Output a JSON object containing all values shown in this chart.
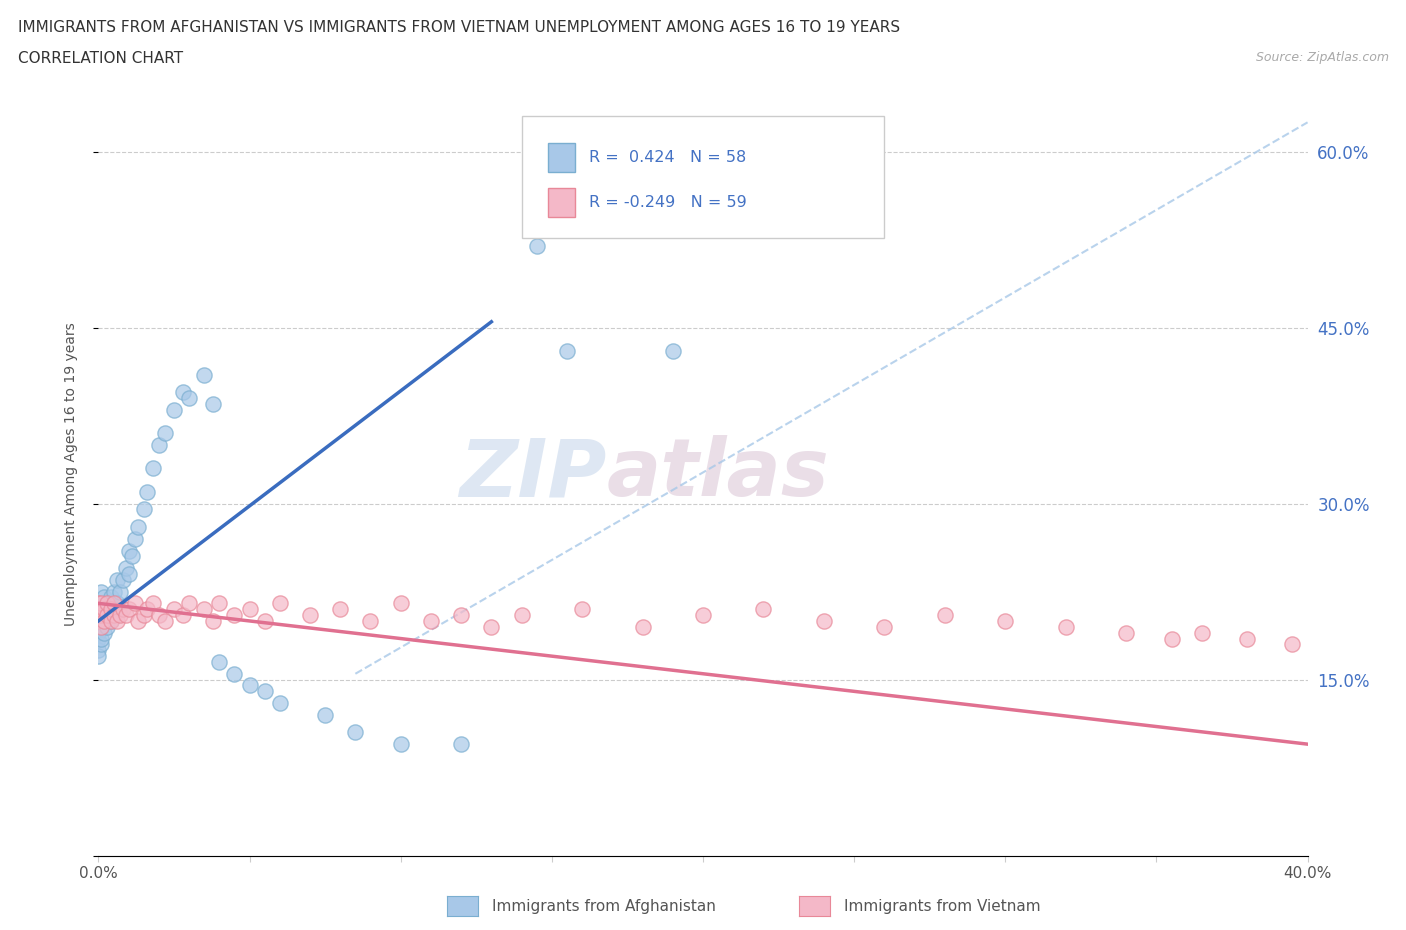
{
  "title_line1": "IMMIGRANTS FROM AFGHANISTAN VS IMMIGRANTS FROM VIETNAM UNEMPLOYMENT AMONG AGES 16 TO 19 YEARS",
  "title_line2": "CORRELATION CHART",
  "source_text": "Source: ZipAtlas.com",
  "ylabel": "Unemployment Among Ages 16 to 19 years",
  "xlim": [
    0.0,
    0.4
  ],
  "ylim": [
    0.0,
    0.65
  ],
  "afghanistan_R": 0.424,
  "afghanistan_N": 58,
  "vietnam_R": -0.249,
  "vietnam_N": 59,
  "color_afghanistan": "#a8c8e8",
  "color_afghanistan_edge": "#7aaed0",
  "color_vietnam": "#f4b8c8",
  "color_vietnam_edge": "#e88898",
  "color_afghanistan_line": "#3a6cbf",
  "color_vietnam_line": "#e07090",
  "color_dashed": "#a8c8e8",
  "background_color": "#ffffff",
  "watermark_zip": "ZIP",
  "watermark_atlas": "atlas",
  "afg_x": [
    0.0,
    0.0,
    0.0,
    0.0,
    0.0,
    0.0,
    0.0,
    0.0,
    0.0,
    0.001,
    0.001,
    0.001,
    0.001,
    0.001,
    0.001,
    0.002,
    0.002,
    0.002,
    0.002,
    0.003,
    0.003,
    0.003,
    0.004,
    0.004,
    0.005,
    0.005,
    0.006,
    0.006,
    0.007,
    0.008,
    0.009,
    0.01,
    0.01,
    0.011,
    0.012,
    0.013,
    0.015,
    0.016,
    0.018,
    0.02,
    0.022,
    0.025,
    0.028,
    0.03,
    0.035,
    0.038,
    0.04,
    0.045,
    0.05,
    0.055,
    0.06,
    0.075,
    0.085,
    0.1,
    0.12,
    0.145,
    0.155,
    0.19
  ],
  "afg_y": [
    0.185,
    0.19,
    0.195,
    0.2,
    0.205,
    0.21,
    0.215,
    0.175,
    0.17,
    0.18,
    0.185,
    0.195,
    0.205,
    0.215,
    0.225,
    0.19,
    0.2,
    0.21,
    0.22,
    0.195,
    0.205,
    0.215,
    0.2,
    0.22,
    0.21,
    0.225,
    0.215,
    0.235,
    0.225,
    0.235,
    0.245,
    0.24,
    0.26,
    0.255,
    0.27,
    0.28,
    0.295,
    0.31,
    0.33,
    0.35,
    0.36,
    0.38,
    0.395,
    0.39,
    0.41,
    0.385,
    0.165,
    0.155,
    0.145,
    0.14,
    0.13,
    0.12,
    0.105,
    0.095,
    0.095,
    0.52,
    0.43,
    0.43
  ],
  "vie_x": [
    0.0,
    0.0,
    0.0,
    0.0,
    0.001,
    0.001,
    0.001,
    0.002,
    0.002,
    0.003,
    0.003,
    0.004,
    0.004,
    0.005,
    0.005,
    0.006,
    0.007,
    0.008,
    0.009,
    0.01,
    0.012,
    0.013,
    0.015,
    0.016,
    0.018,
    0.02,
    0.022,
    0.025,
    0.028,
    0.03,
    0.035,
    0.038,
    0.04,
    0.045,
    0.05,
    0.055,
    0.06,
    0.07,
    0.08,
    0.09,
    0.1,
    0.11,
    0.12,
    0.13,
    0.14,
    0.16,
    0.18,
    0.2,
    0.22,
    0.24,
    0.26,
    0.28,
    0.3,
    0.32,
    0.34,
    0.355,
    0.365,
    0.38,
    0.395
  ],
  "vie_y": [
    0.2,
    0.205,
    0.21,
    0.215,
    0.195,
    0.205,
    0.215,
    0.2,
    0.21,
    0.205,
    0.215,
    0.2,
    0.21,
    0.205,
    0.215,
    0.2,
    0.205,
    0.21,
    0.205,
    0.21,
    0.215,
    0.2,
    0.205,
    0.21,
    0.215,
    0.205,
    0.2,
    0.21,
    0.205,
    0.215,
    0.21,
    0.2,
    0.215,
    0.205,
    0.21,
    0.2,
    0.215,
    0.205,
    0.21,
    0.2,
    0.215,
    0.2,
    0.205,
    0.195,
    0.205,
    0.21,
    0.195,
    0.205,
    0.21,
    0.2,
    0.195,
    0.205,
    0.2,
    0.195,
    0.19,
    0.185,
    0.19,
    0.185,
    0.18
  ]
}
